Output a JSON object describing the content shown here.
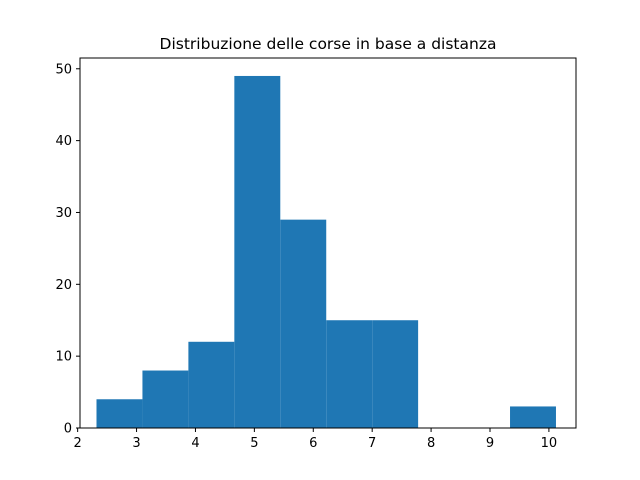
{
  "chart_data": {
    "type": "histogram",
    "title": "Distribuzione delle corse in base a distanza",
    "xlabel": "",
    "ylabel": "",
    "xlim": [
      2.04,
      10.46
    ],
    "ylim": [
      0,
      51.5
    ],
    "xticks": [
      2,
      3,
      4,
      5,
      6,
      7,
      8,
      9,
      10
    ],
    "yticks": [
      0,
      10,
      20,
      30,
      40,
      50
    ],
    "bin_edges": [
      2.32,
      3.1,
      3.88,
      4.66,
      5.44,
      6.22,
      7.0,
      7.78,
      8.56,
      9.34,
      10.12
    ],
    "values": [
      4,
      8,
      12,
      49,
      29,
      15,
      15,
      0,
      0,
      3
    ],
    "bar_color": "#1f77b4",
    "grid": false,
    "legend": false
  }
}
